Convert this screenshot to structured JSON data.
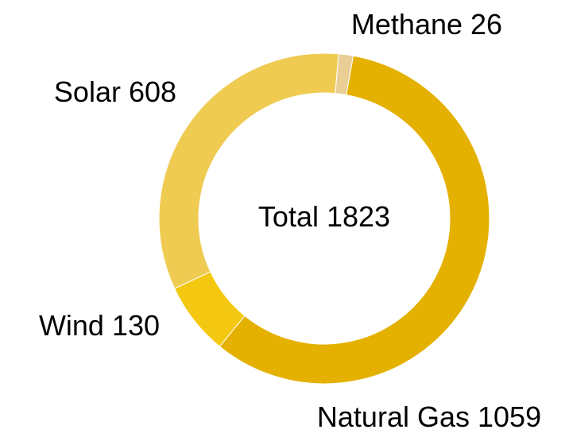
{
  "chart_data": {
    "type": "donut",
    "categories": [
      "Methane",
      "Natural Gas",
      "Wind",
      "Solar"
    ],
    "values": [
      26,
      1059,
      130,
      608
    ],
    "colors": [
      "#e9cf96",
      "#e4b100",
      "#f4c810",
      "#efcb52"
    ],
    "center_label": "Total",
    "total": 1823
  }
}
